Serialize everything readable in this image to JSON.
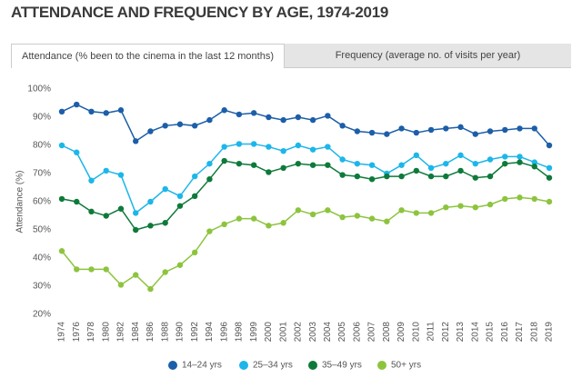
{
  "title": "ATTENDANCE AND FREQUENCY BY AGE, 1974-2019",
  "tabs": [
    "Attendance (% been to the cinema in the last 12 months)",
    "Frequency (average no. of visits per year)"
  ],
  "chart_data": {
    "type": "line",
    "y_label": "Attendance (%)",
    "categories": [
      "1974",
      "1976",
      "1978",
      "1980",
      "1982",
      "1984",
      "1986",
      "1988",
      "1990",
      "1992",
      "1994",
      "1996",
      "1998",
      "1999",
      "2000",
      "2001",
      "2002",
      "2003",
      "2004",
      "2005",
      "2006",
      "2007",
      "2008",
      "2009",
      "2010",
      "2011",
      "2012",
      "2013",
      "2014",
      "2015",
      "2016",
      "2017",
      "2018",
      "2019"
    ],
    "ylim": [
      20,
      100
    ],
    "yticks": [
      {
        "value": 20,
        "label": "20%"
      },
      {
        "value": 30,
        "label": "30%"
      },
      {
        "value": 40,
        "label": "40%"
      },
      {
        "value": 50,
        "label": "50%"
      },
      {
        "value": 60,
        "label": "60%"
      },
      {
        "value": 70,
        "label": "70%"
      },
      {
        "value": 80,
        "label": "80%"
      },
      {
        "value": 90,
        "label": "90%"
      },
      {
        "value": 100,
        "label": "100%"
      }
    ],
    "grid": false,
    "series": [
      {
        "name": "14–24 yrs",
        "color": "#1c5ea8",
        "values": [
          92,
          94.5,
          92,
          91.5,
          92.5,
          81.5,
          85,
          87,
          87.5,
          87,
          89,
          92.5,
          91,
          91.5,
          90,
          89,
          90,
          89,
          90.5,
          87,
          85,
          84.5,
          84,
          86,
          84.5,
          85.5,
          86,
          86.5,
          84,
          85,
          85.5,
          86,
          86,
          80
        ]
      },
      {
        "name": "25–34 yrs",
        "color": "#1cb6ea",
        "values": [
          80,
          77.5,
          67.5,
          71,
          69.5,
          56,
          60,
          64.5,
          62,
          69,
          73.5,
          79.5,
          80.5,
          80.5,
          79.5,
          78,
          80,
          78.5,
          79.5,
          75,
          73.5,
          73,
          70,
          73,
          76.5,
          72,
          73.5,
          76.5,
          73.5,
          75,
          76,
          76,
          74,
          72
        ]
      },
      {
        "name": "35–49 yrs",
        "color": "#0e7a3a",
        "values": [
          61,
          60,
          56.5,
          55,
          57.5,
          50,
          51.5,
          52.5,
          58.5,
          62,
          68,
          74.5,
          73.5,
          73,
          70.5,
          72,
          73.5,
          73,
          73,
          69.5,
          69,
          68,
          69,
          69,
          71,
          69,
          69,
          71,
          68.5,
          69,
          73.5,
          74,
          72.5,
          68.5
        ]
      },
      {
        "name": "50+ yrs",
        "color": "#8dc43e",
        "values": [
          42.5,
          36,
          36,
          36,
          30.5,
          34,
          29,
          35,
          37.5,
          42,
          49.5,
          52,
          54,
          54,
          51.5,
          52.5,
          57,
          55.5,
          57,
          54.5,
          55,
          54,
          53,
          57,
          56,
          56,
          58,
          58.5,
          58,
          59,
          61,
          61.5,
          61,
          60
        ]
      }
    ]
  }
}
